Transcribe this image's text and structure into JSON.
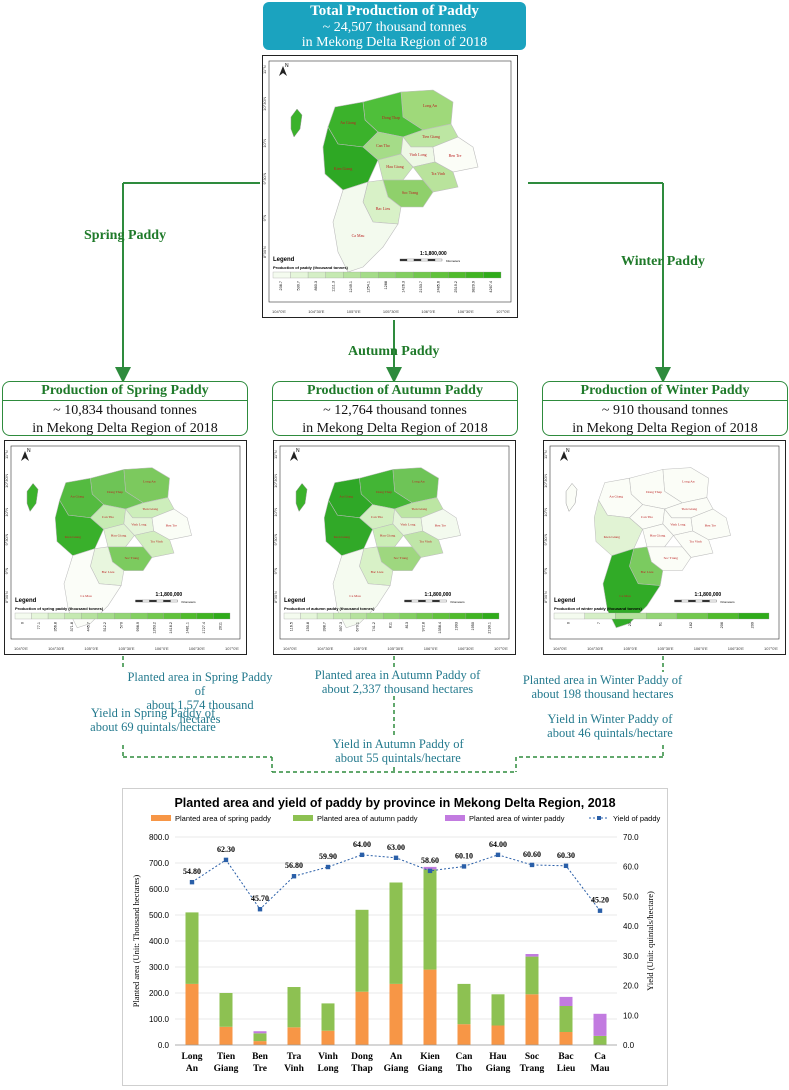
{
  "header": {
    "title": "Total Production of Paddy",
    "line2": "~ 24,507 thousand tonnes",
    "line3": "in Mekong Delta Region of 2018"
  },
  "branches": {
    "spring": "Spring Paddy",
    "autumn": "Autumn Paddy",
    "winter": "Winter Paddy"
  },
  "boxes": [
    {
      "title": "Production of Spring Paddy",
      "line2": "~ 10,834 thousand tonnes",
      "line3": "in Mekong Delta Region of 2018"
    },
    {
      "title": "Production of Autumn Paddy",
      "line2": "~ 12,764 thousand tonnes",
      "line3": "in Mekong Delta Region of 2018"
    },
    {
      "title": "Production of Winter Paddy",
      "line2": "~ 910 thousand tonnes",
      "line3": "in Mekong Delta Region of 2018"
    }
  ],
  "maps": {
    "total": {
      "legend": "Legend",
      "scale": "1:1,800,000",
      "subtitle": "Production of paddy (thousand tonnes)",
      "ticks": [
        "236.7",
        "530.7",
        "860.3",
        "1111.3",
        "1249.1",
        "1254.1",
        "1288",
        "1426.3",
        "2153.7",
        "2485.6",
        "2519.2",
        "3829.9",
        "4267.4"
      ]
    },
    "spring": {
      "legend": "Legend",
      "scale": "1:1,800,000",
      "subtitle": "Production of spring paddy (thousand tonnes)",
      "ticks": [
        "0",
        "77.1",
        "356.8",
        "371.8",
        "445.7",
        "512.2",
        "570",
        "998.9",
        "1263.2",
        "1416.2",
        "1481.1",
        "1727.4",
        "2011"
      ]
    },
    "autumn": {
      "legend": "Legend",
      "scale": "1:1,800,000",
      "subtitle": "Production of autumn paddy (thousand tonnes)",
      "ticks": [
        "116.5",
        "150.8",
        "398.7",
        "397.3",
        "670.1",
        "741.2",
        "811",
        "813",
        "972.8",
        "1358.4",
        "1993",
        "1950",
        "2190.1"
      ]
    },
    "winter": {
      "legend": "Legend",
      "scale": "1:1,800,000",
      "subtitle": "Production of winter paddy (thousand tonnes)",
      "ticks": [
        "0",
        "7",
        "21",
        "61",
        "162",
        "206",
        "209"
      ]
    },
    "provinces": [
      "An Giang",
      "Dong Thap",
      "Long An",
      "Tien Giang",
      "Can Tho",
      "Vinh Long",
      "Ben Tre",
      "Kien Giang",
      "Hau Giang",
      "Tra Vinh",
      "Soc Trang",
      "Bac Lieu",
      "Ca Mau"
    ],
    "lon_labels": [
      "104°0'E",
      "104°30'E",
      "105°0'E",
      "105°30'E",
      "106°0'E",
      "106°30'E",
      "107°0'E"
    ],
    "lat_labels": [
      "11°N",
      "10°30'N",
      "10°N",
      "9°30'N",
      "9°N",
      "8°30'N"
    ],
    "north": "N",
    "km": "Kilometers"
  },
  "notes": {
    "spring_area": [
      "Planted area in Spring Paddy of",
      "about 1,574 thousand hectares"
    ],
    "spring_yield": [
      "Yield in Spring Paddy of",
      "about 69 quintals/hectare"
    ],
    "autumn_area": [
      "Planted area in Autumn Paddy of",
      "about 2,337 thousand hectares"
    ],
    "autumn_yield": [
      "Yield in Autumn Paddy of",
      "about 55 quintals/hectare"
    ],
    "winter_area": [
      "Planted area in Winter Paddy of",
      "about 198 thousand hectares"
    ],
    "winter_yield": [
      "Yield in Winter Paddy of",
      "about 46 quintals/hectare"
    ]
  },
  "colors": {
    "spring": "#f79646",
    "autumn": "#8dc152",
    "winter": "#c27be0",
    "yield": "#2a5fa8",
    "teal": "#1ba3bf",
    "green": "#1f7a2a"
  },
  "chart_data": {
    "type": "bar",
    "title": "Planted area and yield of paddy by province in Mekong Delta Region, 2018",
    "categories": [
      [
        "Long",
        "An"
      ],
      [
        "Tien",
        "Giang"
      ],
      [
        "Ben",
        "Tre"
      ],
      [
        "Tra",
        "Vinh"
      ],
      [
        "Vinh",
        "Long"
      ],
      [
        "Dong",
        "Thap"
      ],
      [
        "An",
        "Giang"
      ],
      [
        "Kien",
        "Giang"
      ],
      [
        "Can",
        "Tho"
      ],
      [
        "Hau",
        "Giang"
      ],
      [
        "Soc",
        "Trang"
      ],
      [
        "Bac",
        "Lieu"
      ],
      [
        "Ca",
        "Mau"
      ]
    ],
    "series": [
      {
        "name": "Planted area of spring paddy",
        "values": [
          235,
          70,
          15,
          68,
          55,
          205,
          235,
          290,
          80,
          75,
          195,
          50,
          0
        ]
      },
      {
        "name": "Planted area of autumn paddy",
        "values": [
          275,
          130,
          30,
          155,
          105,
          315,
          390,
          385,
          155,
          120,
          145,
          100,
          35
        ]
      },
      {
        "name": "Planted area of winter paddy",
        "values": [
          0,
          0,
          8,
          0,
          0,
          0,
          0,
          10,
          0,
          0,
          10,
          35,
          85
        ]
      },
      {
        "name": "Yield of paddy",
        "axis": "right",
        "values": [
          54.8,
          62.3,
          45.7,
          56.8,
          59.9,
          64.0,
          63.0,
          58.6,
          60.1,
          64.0,
          60.6,
          60.3,
          45.2
        ],
        "labels": [
          "54.80",
          "62.30",
          "45.70",
          "56.80",
          "59.90",
          "64.00",
          "63.00",
          "58.60",
          "60.10",
          "64.00",
          "60.60",
          "60.30",
          "45.20"
        ]
      }
    ],
    "ylabel": "Planted area (Unit: Thousand hectares)",
    "y2label": "Yield (Unit: quintals/hectare)",
    "ylim": [
      0,
      800
    ],
    "y2lim": [
      0,
      70
    ],
    "yticks": [
      "0.0",
      "100.0",
      "200.0",
      "300.0",
      "400.0",
      "500.0",
      "600.0",
      "700.0",
      "800.0"
    ],
    "y2ticks": [
      "0.0",
      "10.0",
      "20.0",
      "30.0",
      "40.0",
      "50.0",
      "60.0",
      "70.0"
    ]
  }
}
